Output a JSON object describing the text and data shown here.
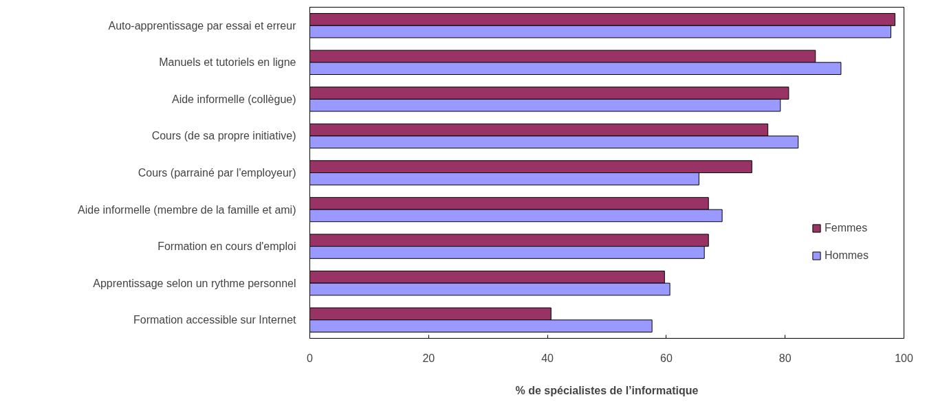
{
  "chart_data": {
    "type": "bar",
    "orientation": "horizontal",
    "xlabel": "% de spécialistes de l’informatique",
    "categories": [
      "Auto-apprentissage par essai et erreur",
      "Manuels et tutoriels en ligne",
      "Aide informelle (collègue)",
      "Cours (de sa propre initiative)",
      "Cours (parrainé par l'employeur)",
      "Aide informelle (membre de la famille et ami)",
      "Formation en cours d'emploi",
      "Apprentissage selon un rythme personnel",
      "Formation accessible sur Internet"
    ],
    "series": [
      {
        "name": "Femmes",
        "color": "#993366",
        "values": [
          98.5,
          85.1,
          80.6,
          77.1,
          74.4,
          67.1,
          67.1,
          59.7,
          40.6
        ]
      },
      {
        "name": "Hommes",
        "color": "#9999ff",
        "values": [
          97.8,
          89.4,
          79.2,
          82.2,
          65.5,
          69.4,
          66.4,
          60.6,
          57.6
        ]
      }
    ],
    "xlim": [
      0,
      100
    ],
    "xticks": [
      0,
      20,
      40,
      60,
      80,
      100
    ],
    "grid": false,
    "legend": "right"
  }
}
